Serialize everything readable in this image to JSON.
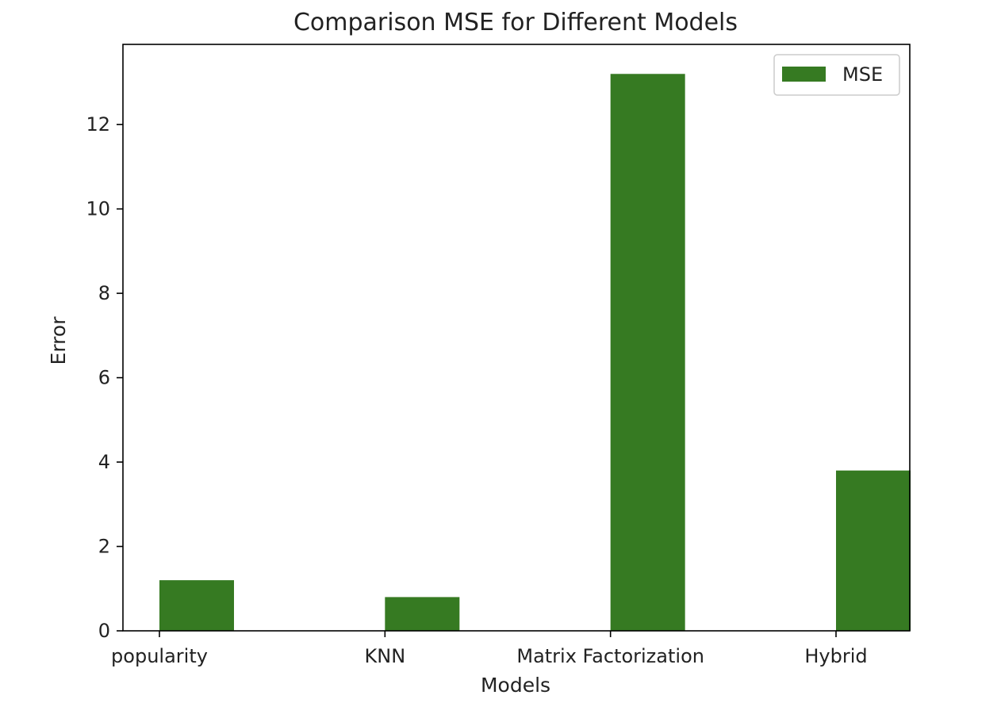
{
  "chart_data": {
    "type": "bar",
    "title": "Comparison MSE for Different Models",
    "xlabel": "Models",
    "ylabel": "Error",
    "categories": [
      "popularity",
      "KNN",
      "Matrix Factorization",
      "Hybrid"
    ],
    "series": [
      {
        "name": "MSE",
        "values": [
          1.2,
          0.8,
          13.2,
          3.8
        ],
        "color": "#367a22"
      }
    ],
    "yticks": [
      0,
      2,
      4,
      6,
      8,
      10,
      12
    ],
    "ylim": [
      0,
      13.9
    ],
    "grid": false,
    "legend": "top-right"
  }
}
